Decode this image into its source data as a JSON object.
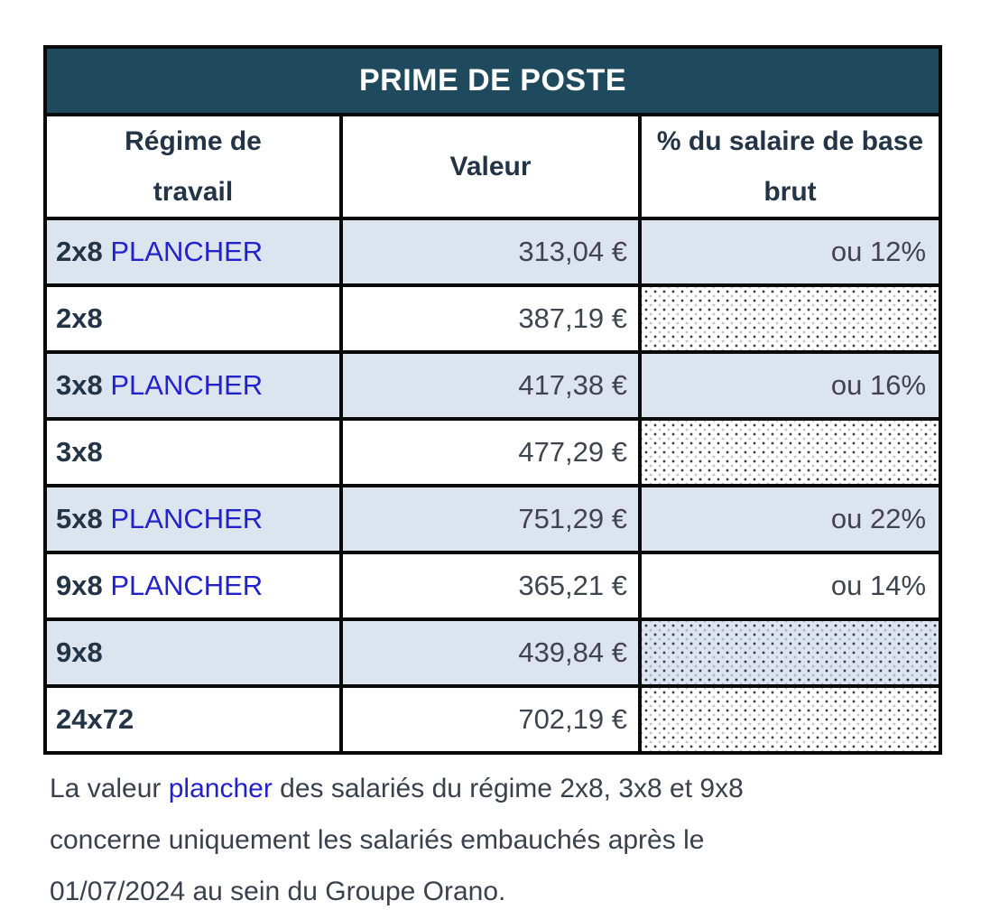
{
  "table": {
    "title": "PRIME DE POSTE",
    "columns": [
      "Régime de travail",
      "Valeur",
      "% du salaire de base brut"
    ],
    "rows": [
      {
        "regime": "2x8",
        "suffix": "PLANCHER",
        "valeur": "313,04 €",
        "pourcentage": "ou 12%",
        "shaded": true,
        "dotted": false
      },
      {
        "regime": "2x8",
        "suffix": "",
        "valeur": "387,19 €",
        "pourcentage": "",
        "shaded": false,
        "dotted": true
      },
      {
        "regime": "3x8",
        "suffix": "PLANCHER",
        "valeur": "417,38 €",
        "pourcentage": "ou 16%",
        "shaded": true,
        "dotted": false
      },
      {
        "regime": "3x8",
        "suffix": "",
        "valeur": "477,29 €",
        "pourcentage": "",
        "shaded": false,
        "dotted": true
      },
      {
        "regime": "5x8",
        "suffix": "PLANCHER",
        "valeur": "751,29 €",
        "pourcentage": "ou 22%",
        "shaded": true,
        "dotted": false
      },
      {
        "regime": "9x8",
        "suffix": "PLANCHER",
        "valeur": "365,21 €",
        "pourcentage": "ou 14%",
        "shaded": false,
        "dotted": false
      },
      {
        "regime": "9x8",
        "suffix": "",
        "valeur": "439,84 €",
        "pourcentage": "",
        "shaded": true,
        "dotted": true
      },
      {
        "regime": "24x72",
        "suffix": "",
        "valeur": "702,19 €",
        "pourcentage": "",
        "shaded": false,
        "dotted": true
      }
    ]
  },
  "footnote": {
    "part1": "La valeur ",
    "link": "plancher",
    "part2": " des salariés du régime 2x8, 3x8 et 9x8 concerne uniquement les salariés embauchés après le 01/07/2024 au sein du Groupe Orano."
  },
  "colors": {
    "title_band": "#1f4a5e",
    "shaded_row": "#dce4ef",
    "label_navy": "#233446",
    "value_gray": "#3e454f",
    "accent_blue": "#2222cc",
    "border_black": "#0a0a0a"
  }
}
